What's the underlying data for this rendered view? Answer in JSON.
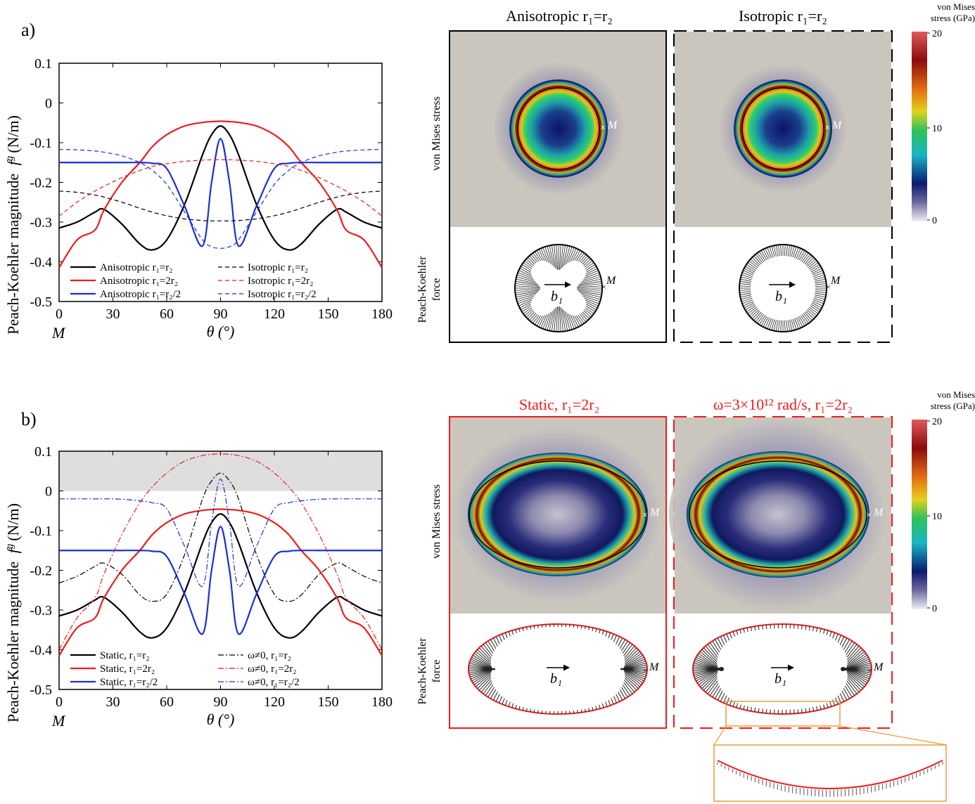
{
  "panel_a": {
    "label": "a)",
    "ylabel": "Peach-Koehler magnitude",
    "ylabel_sym": "f",
    "ylabel_sup": "g",
    "ylabel_unit": "(N/m)",
    "xlabel": "θ (°)",
    "x_origin_label": "M",
    "legend": [
      {
        "text": "Anisotropic r₁=r₂",
        "color": "#000000",
        "dash": "solid"
      },
      {
        "text": "Anisotropic r₁=2r₂",
        "color": "#ee1c1c",
        "dash": "solid"
      },
      {
        "text": "Anisotropic r₁=r₂/2",
        "color": "#1a2fd6",
        "dash": "solid"
      },
      {
        "text": "Isotropic r₁=r₂",
        "color": "#000000",
        "dash": "dash"
      },
      {
        "text": "Isotropic r₁=2r₂",
        "color": "#ee1c1c",
        "dash": "dash"
      },
      {
        "text": "Isotropic r₁=r₂/2",
        "color": "#1a2fd6",
        "dash": "dash"
      }
    ],
    "maps": {
      "left_title": "Anisotropic r₁=r₂",
      "right_title": "Isotropic r₁=r₂",
      "row1_label": "von Mises stress",
      "row2_label_1": "Peach-Koehler",
      "row2_label_2": "force",
      "point_label": "M",
      "vector_label": "b₁"
    },
    "colorbar": {
      "title_1": "von Mises",
      "title_2": "stress (GPa)",
      "ticks": [
        "20",
        "10",
        "0"
      ]
    }
  },
  "panel_b": {
    "label": "b)",
    "ylabel": "Peach-Koehler magnitude",
    "ylabel_sym": "f",
    "ylabel_sup": "g",
    "ylabel_unit": "(N/m)",
    "xlabel": "θ (°)",
    "x_origin_label": "M",
    "legend": [
      {
        "text": "Static, r₁=r₂",
        "color": "#000000",
        "dash": "solid"
      },
      {
        "text": "Static, r₁=2r₂",
        "color": "#ee1c1c",
        "dash": "solid"
      },
      {
        "text": "Static, r₁=r₂/2",
        "color": "#1a2fd6",
        "dash": "solid"
      },
      {
        "text": "ω≠0, r₁=r₂",
        "color": "#000000",
        "dash": "dashdot"
      },
      {
        "text": "ω≠0, r₁=2r₂",
        "color": "#ee1c1c",
        "dash": "dashdot"
      },
      {
        "text": "ω≠0, r₁=r₂/2",
        "color": "#1a2fd6",
        "dash": "dashdot"
      }
    ],
    "maps": {
      "left_title": "Static, r₁=2r₂",
      "right_title": "ω=3×10¹² rad/s, r₁=2r₂",
      "row1_label": "von Mises stress",
      "row2_label_1": "Peach-Koehler",
      "row2_label_2": "force",
      "point_label": "M",
      "vector_label": "b₁"
    },
    "colorbar": {
      "title_1": "von Mises",
      "title_2": "stress (GPa)",
      "ticks": [
        "20",
        "10",
        "0"
      ]
    }
  },
  "colors": {
    "background_gray": "#cac6be",
    "accent_red": "#ee1c1c",
    "inset_orange": "#f39a3a"
  },
  "chart_data": [
    {
      "type": "line",
      "x_ticks": [
        "0",
        "30",
        "60",
        "90",
        "120",
        "150",
        "180"
      ],
      "y_ticks": [
        "0.1",
        "0",
        "-0.1",
        "-0.2",
        "-0.3",
        "-0.4",
        "-0.5"
      ],
      "xlim": [
        0,
        180
      ],
      "ylim": [
        -0.5,
        0.1
      ],
      "x": [
        0,
        10,
        20,
        25,
        35,
        45,
        52,
        60,
        70,
        80,
        85,
        90,
        95,
        100,
        110,
        120,
        128,
        135,
        145,
        155,
        160,
        170,
        180
      ],
      "series": [
        {
          "name": "Anisotropic r₁=r₂",
          "color": "#000000",
          "dash": "solid",
          "width": 2.2,
          "values": [
            -0.315,
            -0.3,
            -0.275,
            -0.268,
            -0.305,
            -0.355,
            -0.37,
            -0.345,
            -0.255,
            -0.13,
            -0.08,
            -0.058,
            -0.08,
            -0.13,
            -0.255,
            -0.345,
            -0.37,
            -0.355,
            -0.305,
            -0.268,
            -0.275,
            -0.3,
            -0.315
          ]
        },
        {
          "name": "Anisotropic r₁=2r₂",
          "color": "#ee1c1c",
          "dash": "solid",
          "width": 2.2,
          "values": [
            -0.415,
            -0.345,
            -0.32,
            -0.27,
            -0.2,
            -0.15,
            -0.11,
            -0.08,
            -0.058,
            -0.049,
            -0.047,
            -0.046,
            -0.047,
            -0.049,
            -0.058,
            -0.08,
            -0.11,
            -0.15,
            -0.2,
            -0.27,
            -0.32,
            -0.345,
            -0.415
          ]
        },
        {
          "name": "Anisotropic r₁=r₂/2",
          "color": "#1a2fd6",
          "dash": "solid",
          "width": 2.2,
          "values": [
            -0.15,
            -0.15,
            -0.15,
            -0.15,
            -0.15,
            -0.15,
            -0.152,
            -0.165,
            -0.26,
            -0.36,
            -0.2,
            -0.09,
            -0.2,
            -0.36,
            -0.26,
            -0.165,
            -0.152,
            -0.15,
            -0.15,
            -0.15,
            -0.15,
            -0.15,
            -0.15
          ]
        },
        {
          "name": "Isotropic r₁=r₂",
          "color": "#000000",
          "dash": "dash",
          "width": 1.2,
          "values": [
            -0.222,
            -0.225,
            -0.232,
            -0.237,
            -0.25,
            -0.265,
            -0.275,
            -0.284,
            -0.292,
            -0.296,
            -0.297,
            -0.297,
            -0.297,
            -0.296,
            -0.292,
            -0.284,
            -0.275,
            -0.265,
            -0.25,
            -0.237,
            -0.232,
            -0.225,
            -0.222
          ]
        },
        {
          "name": "Isotropic r₁=2r₂",
          "color": "#ee1c1c",
          "dash": "dash",
          "width": 1.2,
          "values": [
            -0.285,
            -0.25,
            -0.222,
            -0.21,
            -0.188,
            -0.17,
            -0.16,
            -0.153,
            -0.147,
            -0.144,
            -0.143,
            -0.143,
            -0.143,
            -0.144,
            -0.147,
            -0.153,
            -0.16,
            -0.17,
            -0.188,
            -0.21,
            -0.222,
            -0.25,
            -0.285
          ]
        },
        {
          "name": "Isotropic r₁=r₂/2",
          "color": "#1a2fd6",
          "dash": "dash",
          "width": 1.2,
          "values": [
            -0.117,
            -0.118,
            -0.121,
            -0.124,
            -0.133,
            -0.15,
            -0.17,
            -0.205,
            -0.275,
            -0.345,
            -0.362,
            -0.366,
            -0.362,
            -0.345,
            -0.275,
            -0.205,
            -0.17,
            -0.15,
            -0.133,
            -0.124,
            -0.121,
            -0.118,
            -0.117
          ]
        }
      ]
    },
    {
      "type": "line",
      "x_ticks": [
        "0",
        "30",
        "60",
        "90",
        "120",
        "150",
        "180"
      ],
      "y_ticks": [
        "0.1",
        "0",
        "-0.1",
        "-0.2",
        "-0.3",
        "-0.4",
        "-0.5"
      ],
      "xlim": [
        0,
        180
      ],
      "ylim": [
        -0.5,
        0.1
      ],
      "shaded_band_y": [
        0,
        0.1
      ],
      "x": [
        0,
        10,
        20,
        25,
        35,
        45,
        52,
        60,
        70,
        80,
        85,
        90,
        95,
        100,
        110,
        120,
        128,
        135,
        145,
        155,
        160,
        170,
        180
      ],
      "series": [
        {
          "name": "Static, r₁=r₂",
          "color": "#000000",
          "dash": "solid",
          "width": 2.2,
          "values": [
            -0.315,
            -0.3,
            -0.275,
            -0.268,
            -0.305,
            -0.355,
            -0.37,
            -0.345,
            -0.255,
            -0.13,
            -0.08,
            -0.058,
            -0.08,
            -0.13,
            -0.255,
            -0.345,
            -0.37,
            -0.355,
            -0.305,
            -0.268,
            -0.275,
            -0.3,
            -0.315
          ]
        },
        {
          "name": "Static, r₁=2r₂",
          "color": "#ee1c1c",
          "dash": "solid",
          "width": 2.2,
          "values": [
            -0.415,
            -0.345,
            -0.32,
            -0.27,
            -0.2,
            -0.15,
            -0.11,
            -0.08,
            -0.058,
            -0.049,
            -0.047,
            -0.046,
            -0.047,
            -0.049,
            -0.058,
            -0.08,
            -0.11,
            -0.15,
            -0.2,
            -0.27,
            -0.32,
            -0.345,
            -0.415
          ]
        },
        {
          "name": "Static, r₁=r₂/2",
          "color": "#1a2fd6",
          "dash": "solid",
          "width": 2.2,
          "values": [
            -0.15,
            -0.15,
            -0.15,
            -0.15,
            -0.15,
            -0.15,
            -0.152,
            -0.165,
            -0.26,
            -0.36,
            -0.2,
            -0.09,
            -0.2,
            -0.36,
            -0.26,
            -0.165,
            -0.152,
            -0.15,
            -0.15,
            -0.15,
            -0.15,
            -0.15,
            -0.15
          ]
        },
        {
          "name": "ω≠0, r₁=r₂",
          "color": "#000000",
          "dash": "dashdot",
          "width": 1.2,
          "values": [
            -0.232,
            -0.215,
            -0.19,
            -0.182,
            -0.21,
            -0.262,
            -0.278,
            -0.26,
            -0.16,
            -0.02,
            0.025,
            0.045,
            0.025,
            -0.02,
            -0.16,
            -0.26,
            -0.278,
            -0.262,
            -0.21,
            -0.182,
            -0.19,
            -0.215,
            -0.232
          ]
        },
        {
          "name": "ω≠0, r₁=2r₂",
          "color": "#ee1c1c",
          "dash": "dashdot",
          "width": 1.2,
          "values": [
            -0.4,
            -0.32,
            -0.27,
            -0.21,
            -0.11,
            -0.03,
            0.01,
            0.045,
            0.075,
            0.089,
            0.092,
            0.093,
            0.092,
            0.089,
            0.075,
            0.045,
            0.01,
            -0.03,
            -0.11,
            -0.21,
            -0.27,
            -0.32,
            -0.4
          ]
        },
        {
          "name": "ω≠0, r₁=r₂/2",
          "color": "#1a2fd6",
          "dash": "dashdot",
          "width": 1.2,
          "values": [
            -0.02,
            -0.02,
            -0.02,
            -0.02,
            -0.021,
            -0.025,
            -0.03,
            -0.045,
            -0.14,
            -0.24,
            -0.08,
            0.03,
            -0.08,
            -0.24,
            -0.14,
            -0.045,
            -0.03,
            -0.025,
            -0.021,
            -0.02,
            -0.02,
            -0.02,
            -0.02
          ]
        }
      ]
    }
  ]
}
